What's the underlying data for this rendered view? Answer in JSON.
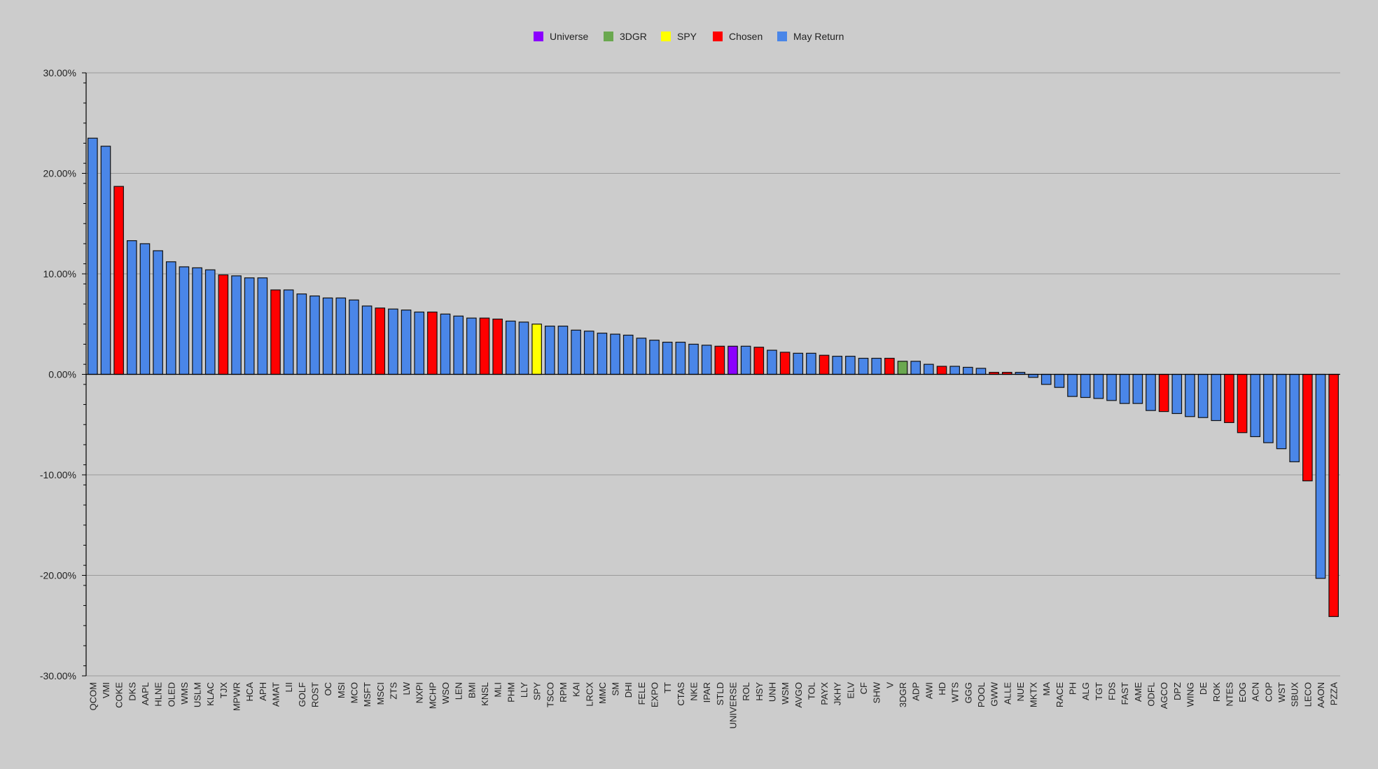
{
  "chart_data": {
    "type": "bar",
    "title": "",
    "xlabel": "",
    "ylabel": "",
    "ylim": [
      -0.3,
      0.3
    ],
    "y_ticks": [
      "30.00%",
      "20.00%",
      "10.00%",
      "0.00%",
      "-10.00%",
      "-20.00%",
      "-30.00%"
    ],
    "y_tick_values": [
      0.3,
      0.2,
      0.1,
      0.0,
      -0.1,
      -0.2,
      -0.3
    ],
    "grid": true,
    "legend_position": "top-center",
    "legend": [
      {
        "label": "Universe",
        "color": "#8b00ff"
      },
      {
        "label": "3DGR",
        "color": "#6aa84f"
      },
      {
        "label": "SPY",
        "color": "#ffff00"
      },
      {
        "label": "Chosen",
        "color": "#ff0000"
      },
      {
        "label": "May Return",
        "color": "#4a86e8"
      }
    ],
    "colors": {
      "Universe": "#8b00ff",
      "3DGR": "#6aa84f",
      "SPY": "#ffff00",
      "Chosen": "#ff0000",
      "May Return": "#4a86e8"
    },
    "categories": [
      "QCOM",
      "VMI",
      "COKE",
      "DKS",
      "AAPL",
      "HLNE",
      "OLED",
      "WMS",
      "USLM",
      "KLAC",
      "TJX",
      "MPWR",
      "HCA",
      "APH",
      "AMAT",
      "LII",
      "GOLF",
      "ROST",
      "OC",
      "MSI",
      "MCO",
      "MSFT",
      "MSCI",
      "ZTS",
      "LW",
      "NXPI",
      "MCHP",
      "WSO",
      "LEN",
      "BMI",
      "KNSL",
      "MLI",
      "PHM",
      "LLY",
      "SPY",
      "TSCO",
      "RPM",
      "KAI",
      "LRCX",
      "MMC",
      "SM",
      "DHI",
      "FELE",
      "EXPO",
      "TT",
      "CTAS",
      "NKE",
      "IPAR",
      "STLD",
      "UNIVERSE",
      "ROL",
      "HSY",
      "UNH",
      "WSM",
      "AVGO",
      "TOL",
      "PAYX",
      "JKHY",
      "ELV",
      "CF",
      "SHW",
      "V",
      "3DGR",
      "ADP",
      "AWI",
      "HD",
      "WTS",
      "GGG",
      "POOL",
      "GWW",
      "ALLE",
      "NUE",
      "MKTX",
      "MA",
      "RACE",
      "PH",
      "ALG",
      "TGT",
      "FDS",
      "FAST",
      "AME",
      "ODFL",
      "AGCO",
      "DPZ",
      "WING",
      "DE",
      "ROK",
      "NTES",
      "EOG",
      "ACN",
      "COP",
      "WST",
      "SBUX",
      "LECO",
      "AAON",
      "PZZA"
    ],
    "values": [
      0.235,
      0.227,
      0.187,
      0.133,
      0.13,
      0.123,
      0.112,
      0.107,
      0.106,
      0.104,
      0.099,
      0.098,
      0.096,
      0.096,
      0.084,
      0.084,
      0.08,
      0.078,
      0.076,
      0.076,
      0.074,
      0.068,
      0.066,
      0.065,
      0.064,
      0.062,
      0.062,
      0.06,
      0.058,
      0.056,
      0.056,
      0.055,
      0.053,
      0.052,
      0.05,
      0.048,
      0.048,
      0.044,
      0.043,
      0.041,
      0.04,
      0.039,
      0.036,
      0.034,
      0.032,
      0.032,
      0.03,
      0.029,
      0.028,
      0.028,
      0.028,
      0.027,
      0.024,
      0.022,
      0.021,
      0.021,
      0.019,
      0.018,
      0.018,
      0.016,
      0.016,
      0.016,
      0.013,
      0.013,
      0.01,
      0.008,
      0.008,
      0.007,
      0.006,
      0.002,
      0.002,
      0.002,
      -0.003,
      -0.01,
      -0.013,
      -0.022,
      -0.023,
      -0.024,
      -0.026,
      -0.029,
      -0.029,
      -0.036,
      -0.037,
      -0.039,
      -0.042,
      -0.043,
      -0.046,
      -0.048,
      -0.058,
      -0.062,
      -0.068,
      -0.074,
      -0.087,
      -0.106,
      -0.203,
      -0.241
    ],
    "groups": [
      "May Return",
      "May Return",
      "Chosen",
      "May Return",
      "May Return",
      "May Return",
      "May Return",
      "May Return",
      "May Return",
      "May Return",
      "Chosen",
      "May Return",
      "May Return",
      "May Return",
      "Chosen",
      "May Return",
      "May Return",
      "May Return",
      "May Return",
      "May Return",
      "May Return",
      "May Return",
      "Chosen",
      "May Return",
      "May Return",
      "May Return",
      "Chosen",
      "May Return",
      "May Return",
      "May Return",
      "Chosen",
      "Chosen",
      "May Return",
      "May Return",
      "SPY",
      "May Return",
      "May Return",
      "May Return",
      "May Return",
      "May Return",
      "May Return",
      "May Return",
      "May Return",
      "May Return",
      "May Return",
      "May Return",
      "May Return",
      "May Return",
      "Chosen",
      "Universe",
      "May Return",
      "Chosen",
      "May Return",
      "Chosen",
      "May Return",
      "May Return",
      "Chosen",
      "May Return",
      "May Return",
      "May Return",
      "May Return",
      "Chosen",
      "3DGR",
      "May Return",
      "May Return",
      "Chosen",
      "May Return",
      "May Return",
      "May Return",
      "Chosen",
      "Chosen",
      "May Return",
      "May Return",
      "May Return",
      "May Return",
      "May Return",
      "May Return",
      "May Return",
      "May Return",
      "May Return",
      "May Return",
      "May Return",
      "Chosen",
      "May Return",
      "May Return",
      "May Return",
      "May Return",
      "Chosen",
      "Chosen",
      "May Return",
      "May Return",
      "May Return",
      "May Return",
      "Chosen",
      "May Return",
      "Chosen"
    ]
  }
}
